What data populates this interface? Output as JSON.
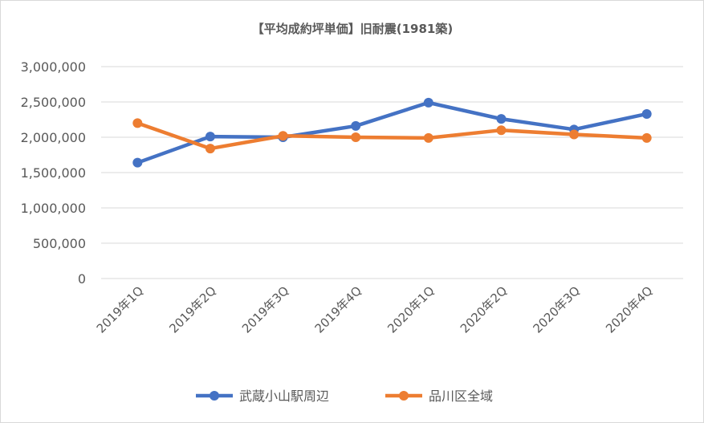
{
  "chart_data": {
    "type": "line",
    "title": "【平均成約坪単価】旧耐震(1981築)",
    "xlabel": "",
    "ylabel": "",
    "categories": [
      "2019年1Q",
      "2019年2Q",
      "2019年3Q",
      "2019年4Q",
      "2020年1Q",
      "2020年2Q",
      "2020年3Q",
      "2020年4Q"
    ],
    "y_tick_labels": [
      "0",
      "500,000",
      "1,000,000",
      "1,500,000",
      "2,000,000",
      "2,500,000",
      "3,000,000"
    ],
    "ylim": [
      0,
      3000000
    ],
    "y_ticks": [
      0,
      500000,
      1000000,
      1500000,
      2000000,
      2500000,
      3000000
    ],
    "grid": true,
    "legend_position": "bottom",
    "series": [
      {
        "name": "武蔵小山駅周辺",
        "color": "#4472c4",
        "values": [
          1640000,
          2010000,
          2000000,
          2160000,
          2490000,
          2260000,
          2110000,
          2330000
        ]
      },
      {
        "name": "品川区全域",
        "color": "#ed7d31",
        "values": [
          2200000,
          1840000,
          2020000,
          2000000,
          1990000,
          2100000,
          2040000,
          1990000
        ]
      }
    ],
    "gridline_color": "#d9d9d9"
  }
}
